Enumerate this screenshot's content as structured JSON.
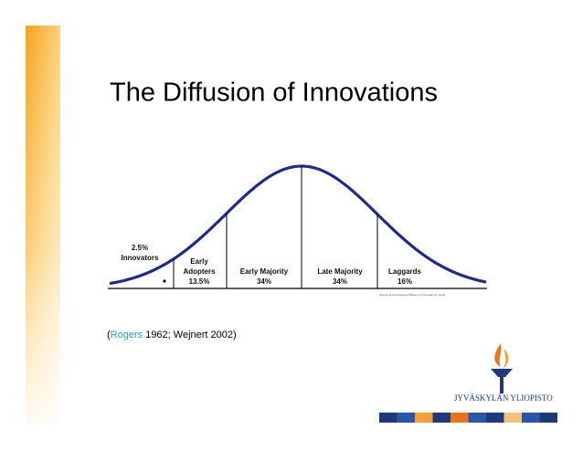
{
  "slide": {
    "title": "The Diffusion of Innovations",
    "segments": [
      {
        "lines": [
          "2.5%",
          "Innovators"
        ]
      },
      {
        "lines": [
          "Early",
          "Adopters",
          "13.5%"
        ]
      },
      {
        "lines": [
          "Early Majority",
          "34%"
        ]
      },
      {
        "lines": [
          "Late Majority",
          "34%"
        ]
      },
      {
        "lines": [
          "Laggards",
          "16%"
        ]
      }
    ],
    "source": "Source: Everett Rogers Diffusion of Innovations model",
    "citation": {
      "open": "(",
      "link": "Rogers",
      "rest": " 1962;  Wejnert 2002)"
    },
    "logo": "JYVÄSKYLÄN YLIOPISTO"
  }
}
